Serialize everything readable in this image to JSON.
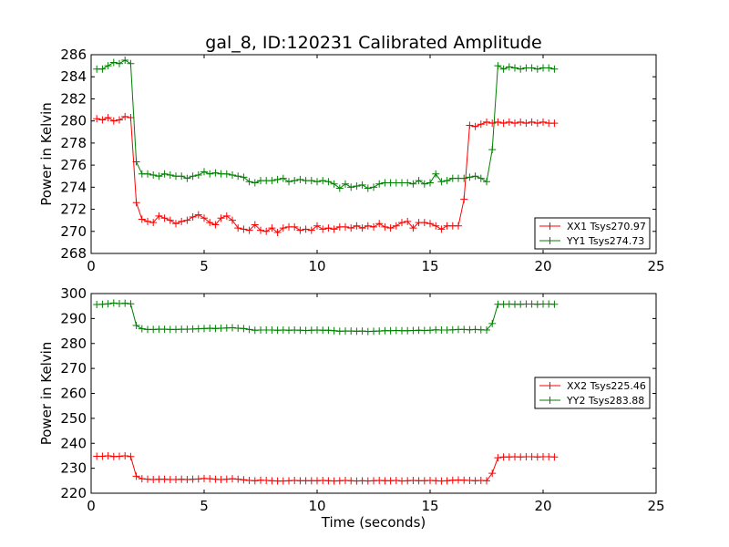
{
  "figure": {
    "title": "gal_8, ID:120231 Calibrated Amplitude",
    "xlabel": "Time (seconds)"
  },
  "chart_data": [
    {
      "type": "line",
      "title": "gal_8, ID:120231 Calibrated Amplitude",
      "xlabel": "",
      "ylabel": "Power in Kelvin",
      "xlim": [
        0,
        25
      ],
      "ylim": [
        268,
        286
      ],
      "xticks": [
        0,
        5,
        10,
        15,
        20,
        25
      ],
      "yticks": [
        268,
        270,
        272,
        274,
        276,
        278,
        280,
        282,
        284,
        286
      ],
      "legend_position": "lower-right",
      "grid": false,
      "series": [
        {
          "name": "XX1 Tsys270.97",
          "color": "#ff0000",
          "marker": "plus",
          "x": [
            0.25,
            0.5,
            0.75,
            1.0,
            1.25,
            1.5,
            1.75,
            2.0,
            2.25,
            2.5,
            2.75,
            3.0,
            3.25,
            3.5,
            3.75,
            4.0,
            4.25,
            4.5,
            4.75,
            5.0,
            5.25,
            5.5,
            5.75,
            6.0,
            6.25,
            6.5,
            6.75,
            7.0,
            7.25,
            7.5,
            7.75,
            8.0,
            8.25,
            8.5,
            8.75,
            9.0,
            9.25,
            9.5,
            9.75,
            10.0,
            10.25,
            10.5,
            10.75,
            11.0,
            11.25,
            11.5,
            11.75,
            12.0,
            12.25,
            12.5,
            12.75,
            13.0,
            13.25,
            13.5,
            13.75,
            14.0,
            14.25,
            14.5,
            14.75,
            15.0,
            15.25,
            15.5,
            15.75,
            16.0,
            16.25,
            16.5,
            16.75,
            17.0,
            17.25,
            17.5,
            17.75,
            18.0,
            18.25,
            18.5,
            18.75,
            19.0,
            19.25,
            19.5,
            19.75,
            20.0,
            20.25,
            20.5
          ],
          "y": [
            280.2,
            280.1,
            280.3,
            280.0,
            280.1,
            280.4,
            280.3,
            272.6,
            271.1,
            270.9,
            270.8,
            271.4,
            271.2,
            271.0,
            270.7,
            270.9,
            271.0,
            271.3,
            271.5,
            271.2,
            270.8,
            270.6,
            271.2,
            271.4,
            271.0,
            270.3,
            270.2,
            270.1,
            270.6,
            270.1,
            270.0,
            270.3,
            269.9,
            270.3,
            270.4,
            270.4,
            270.1,
            270.2,
            270.1,
            270.5,
            270.2,
            270.3,
            270.2,
            270.4,
            270.4,
            270.3,
            270.5,
            270.3,
            270.5,
            270.4,
            270.7,
            270.4,
            270.3,
            270.5,
            270.8,
            270.9,
            270.3,
            270.8,
            270.8,
            270.7,
            270.5,
            270.2,
            270.5,
            270.5,
            270.5,
            272.9,
            279.6,
            279.5,
            279.7,
            279.9,
            279.8,
            279.9,
            279.8,
            279.9,
            279.8,
            279.9,
            279.8,
            279.9,
            279.8,
            279.9,
            279.8,
            279.8
          ]
        },
        {
          "name": "YY1 Tsys274.73",
          "color": "#008000",
          "marker": "plus",
          "x": [
            0.25,
            0.5,
            0.75,
            1.0,
            1.25,
            1.5,
            1.75,
            2.0,
            2.25,
            2.5,
            2.75,
            3.0,
            3.25,
            3.5,
            3.75,
            4.0,
            4.25,
            4.5,
            4.75,
            5.0,
            5.25,
            5.5,
            5.75,
            6.0,
            6.25,
            6.5,
            6.75,
            7.0,
            7.25,
            7.5,
            7.75,
            8.0,
            8.25,
            8.5,
            8.75,
            9.0,
            9.25,
            9.5,
            9.75,
            10.0,
            10.25,
            10.5,
            10.75,
            11.0,
            11.25,
            11.5,
            11.75,
            12.0,
            12.25,
            12.5,
            12.75,
            13.0,
            13.25,
            13.5,
            13.75,
            14.0,
            14.25,
            14.5,
            14.75,
            15.0,
            15.25,
            15.5,
            15.75,
            16.0,
            16.25,
            16.5,
            16.75,
            17.0,
            17.25,
            17.5,
            17.75,
            18.0,
            18.25,
            18.5,
            18.75,
            19.0,
            19.25,
            19.5,
            19.75,
            20.0,
            20.25,
            20.5
          ],
          "y": [
            284.7,
            284.7,
            285.0,
            285.3,
            285.2,
            285.5,
            285.2,
            276.3,
            275.2,
            275.2,
            275.1,
            275.0,
            275.2,
            275.1,
            275.0,
            275.0,
            274.8,
            275.0,
            275.1,
            275.4,
            275.2,
            275.3,
            275.2,
            275.2,
            275.1,
            275.0,
            274.9,
            274.5,
            274.4,
            274.6,
            274.6,
            274.6,
            274.7,
            274.8,
            274.5,
            274.6,
            274.7,
            274.6,
            274.6,
            274.5,
            274.6,
            274.5,
            274.3,
            273.9,
            274.3,
            274.0,
            274.1,
            274.2,
            273.9,
            274.0,
            274.3,
            274.4,
            274.4,
            274.4,
            274.4,
            274.4,
            274.3,
            274.6,
            274.3,
            274.4,
            275.2,
            274.5,
            274.6,
            274.8,
            274.8,
            274.8,
            274.9,
            275.0,
            274.8,
            274.5,
            277.4,
            285.0,
            284.7,
            284.9,
            284.8,
            284.7,
            284.8,
            284.8,
            284.7,
            284.8,
            284.8,
            284.7
          ]
        }
      ]
    },
    {
      "type": "line",
      "title": "",
      "xlabel": "Time (seconds)",
      "ylabel": "Power in Kelvin",
      "xlim": [
        0,
        25
      ],
      "ylim": [
        220,
        300
      ],
      "xticks": [
        0,
        5,
        10,
        15,
        20,
        25
      ],
      "yticks": [
        220,
        230,
        240,
        250,
        260,
        270,
        280,
        290,
        300
      ],
      "legend_position": "center-right",
      "grid": false,
      "series": [
        {
          "name": "XX2 Tsys225.46",
          "color": "#ff0000",
          "marker": "plus",
          "x": [
            0.25,
            0.5,
            0.75,
            1.0,
            1.25,
            1.5,
            1.75,
            2.0,
            2.25,
            2.5,
            2.75,
            3.0,
            3.25,
            3.5,
            3.75,
            4.0,
            4.25,
            4.5,
            4.75,
            5.0,
            5.25,
            5.5,
            5.75,
            6.0,
            6.25,
            6.5,
            6.75,
            7.0,
            7.25,
            7.5,
            7.75,
            8.0,
            8.25,
            8.5,
            8.75,
            9.0,
            9.25,
            9.5,
            9.75,
            10.0,
            10.25,
            10.5,
            10.75,
            11.0,
            11.25,
            11.5,
            11.75,
            12.0,
            12.25,
            12.5,
            12.75,
            13.0,
            13.25,
            13.5,
            13.75,
            14.0,
            14.25,
            14.5,
            14.75,
            15.0,
            15.25,
            15.5,
            15.75,
            16.0,
            16.25,
            16.5,
            16.75,
            17.0,
            17.25,
            17.5,
            17.75,
            18.0,
            18.25,
            18.5,
            18.75,
            19.0,
            19.25,
            19.5,
            19.75,
            20.0,
            20.25,
            20.5
          ],
          "y": [
            234.8,
            234.8,
            235.0,
            234.7,
            234.8,
            235.0,
            234.7,
            226.8,
            225.8,
            225.6,
            225.5,
            225.6,
            225.6,
            225.5,
            225.5,
            225.6,
            225.5,
            225.6,
            225.7,
            225.9,
            225.8,
            225.6,
            225.5,
            225.6,
            225.8,
            225.6,
            225.4,
            225.1,
            225.0,
            225.2,
            225.1,
            225.0,
            224.9,
            224.9,
            225.0,
            225.1,
            225.0,
            225.0,
            225.0,
            225.0,
            225.1,
            225.0,
            224.9,
            225.0,
            225.1,
            225.0,
            224.9,
            225.0,
            224.9,
            225.0,
            225.1,
            225.0,
            225.0,
            225.1,
            224.9,
            225.0,
            225.1,
            225.0,
            225.0,
            225.1,
            225.0,
            224.9,
            225.0,
            225.2,
            225.3,
            225.2,
            225.1,
            225.0,
            225.1,
            225.0,
            228.0,
            234.2,
            234.5,
            234.5,
            234.6,
            234.5,
            234.6,
            234.6,
            234.5,
            234.6,
            234.6,
            234.5
          ]
        },
        {
          "name": "YY2 Tsys283.88",
          "color": "#008000",
          "marker": "plus",
          "x": [
            0.25,
            0.5,
            0.75,
            1.0,
            1.25,
            1.5,
            1.75,
            2.0,
            2.25,
            2.5,
            2.75,
            3.0,
            3.25,
            3.5,
            3.75,
            4.0,
            4.25,
            4.5,
            4.75,
            5.0,
            5.25,
            5.5,
            5.75,
            6.0,
            6.25,
            6.5,
            6.75,
            7.0,
            7.25,
            7.5,
            7.75,
            8.0,
            8.25,
            8.5,
            8.75,
            9.0,
            9.25,
            9.5,
            9.75,
            10.0,
            10.25,
            10.5,
            10.75,
            11.0,
            11.25,
            11.5,
            11.75,
            12.0,
            12.25,
            12.5,
            12.75,
            13.0,
            13.25,
            13.5,
            13.75,
            14.0,
            14.25,
            14.5,
            14.75,
            15.0,
            15.25,
            15.5,
            15.75,
            16.0,
            16.25,
            16.5,
            16.75,
            17.0,
            17.25,
            17.5,
            17.75,
            18.0,
            18.25,
            18.5,
            18.75,
            19.0,
            19.25,
            19.5,
            19.75,
            20.0,
            20.25,
            20.5
          ],
          "y": [
            295.6,
            295.7,
            295.9,
            296.2,
            296.0,
            296.1,
            295.9,
            287.2,
            285.9,
            285.6,
            285.6,
            285.7,
            285.7,
            285.6,
            285.6,
            285.7,
            285.7,
            285.8,
            285.9,
            286.0,
            286.1,
            286.0,
            286.1,
            286.2,
            286.3,
            286.1,
            286.0,
            285.6,
            285.3,
            285.4,
            285.4,
            285.4,
            285.3,
            285.4,
            285.3,
            285.4,
            285.3,
            285.2,
            285.3,
            285.4,
            285.3,
            285.3,
            285.1,
            284.9,
            285.0,
            285.0,
            284.9,
            285.0,
            284.8,
            284.9,
            285.0,
            285.1,
            285.1,
            285.2,
            285.1,
            285.1,
            285.2,
            285.3,
            285.2,
            285.3,
            285.5,
            285.4,
            285.4,
            285.5,
            285.6,
            285.6,
            285.5,
            285.6,
            285.5,
            285.4,
            288.0,
            295.7,
            295.7,
            295.8,
            295.7,
            295.7,
            295.8,
            295.8,
            295.7,
            295.8,
            295.8,
            295.7
          ]
        }
      ]
    }
  ]
}
